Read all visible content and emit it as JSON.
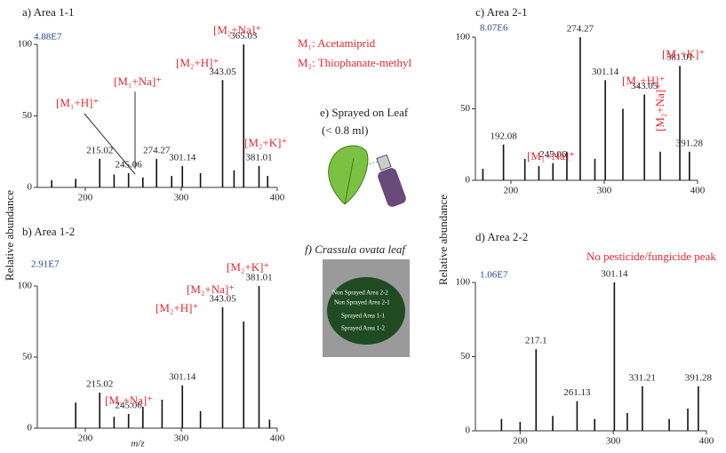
{
  "chart_data": [
    {
      "type": "stick",
      "title": "a) Area 1-1",
      "intensity": "4.88E7",
      "ylabel": "Relative abundance",
      "x": [
        165,
        190,
        215.02,
        230,
        245.06,
        260,
        274.27,
        290,
        301.14,
        320,
        343.05,
        355,
        365.03,
        381.01,
        390
      ],
      "values": [
        5,
        6,
        20,
        9,
        10,
        7,
        20,
        8,
        15,
        10,
        75,
        12,
        100,
        15,
        8
      ],
      "xlim": [
        150,
        400
      ],
      "xticks": [
        200,
        300,
        400
      ],
      "ylim": [
        0,
        100
      ],
      "yticks": [
        0,
        50,
        100
      ],
      "color": "#111111",
      "annotations": [
        "[M₁+H]⁺",
        "[M₁+Na]⁺",
        "[M₂+H]⁺",
        "[M₂+Na]⁺",
        "[M₂+K]⁺"
      ],
      "notes": [
        "M₁: Acetamiprid",
        "M₂: Thiophanate-methyl"
      ]
    },
    {
      "type": "stick",
      "title": "b) Area 1-2",
      "intensity": "2.91E7",
      "xlabel": "m/z",
      "x": [
        190,
        215.02,
        230,
        245.06,
        260,
        280,
        301.14,
        320,
        343.05,
        365.03,
        381.01,
        392
      ],
      "values": [
        18,
        25,
        8,
        10,
        15,
        20,
        30,
        12,
        85,
        75,
        100,
        6
      ],
      "xlim": [
        150,
        400
      ],
      "xticks": [
        200,
        300,
        400
      ],
      "ylim": [
        0,
        100
      ],
      "yticks": [
        0,
        50,
        100
      ],
      "color": "#111111",
      "annotations": [
        "[M₁+Na]⁺",
        "[M₂+H]⁺",
        "[M₂+Na]⁺",
        "[M₂+K]⁺"
      ]
    },
    {
      "type": "stick",
      "title": "c) Area 2-1",
      "intensity": "8.07E6",
      "ylabel": "Relative abundance",
      "x": [
        170,
        192.08,
        215,
        230,
        245.06,
        260,
        274.27,
        290,
        301.14,
        320,
        343.05,
        360,
        381.01,
        391.28
      ],
      "values": [
        8,
        25,
        15,
        10,
        12,
        20,
        100,
        15,
        70,
        50,
        60,
        20,
        80,
        20
      ],
      "xlim": [
        162,
        400
      ],
      "xticks": [
        200,
        300,
        400
      ],
      "ylim": [
        0,
        100
      ],
      "yticks": [
        0,
        50,
        100
      ],
      "color": "#111111",
      "annotations": [
        "[M₁+Na]⁺",
        "[M₂+H]⁺",
        "[M₂+Na]⁺",
        "[M₂+K]⁺"
      ]
    },
    {
      "type": "stick",
      "title": "d) Area 2-2",
      "intensity": "1.06E7",
      "x": [
        180,
        200,
        217.1,
        235,
        261.13,
        280,
        301.14,
        315,
        331.21,
        360,
        380,
        391.28
      ],
      "values": [
        8,
        6,
        55,
        10,
        20,
        8,
        100,
        12,
        30,
        8,
        15,
        30
      ],
      "xlim": [
        152,
        400
      ],
      "xticks": [
        200,
        300,
        400
      ],
      "ylim": [
        0,
        100
      ],
      "yticks": [
        0,
        50,
        100
      ],
      "color": "#111111",
      "annotations": [
        "No pesticide/fungicide peak"
      ]
    }
  ],
  "panel_e": {
    "title": "e) Sprayed on Leaf",
    "subtitle": "(< 0.8 ml)"
  },
  "panel_f": {
    "title": "f) Crassula ovata leaf",
    "labels": [
      "Non Sprayed Area 2-2",
      "Non Sprayed Area 2-1",
      "Sprayed Area 1-1",
      "Sprayed Area 1-2"
    ]
  }
}
